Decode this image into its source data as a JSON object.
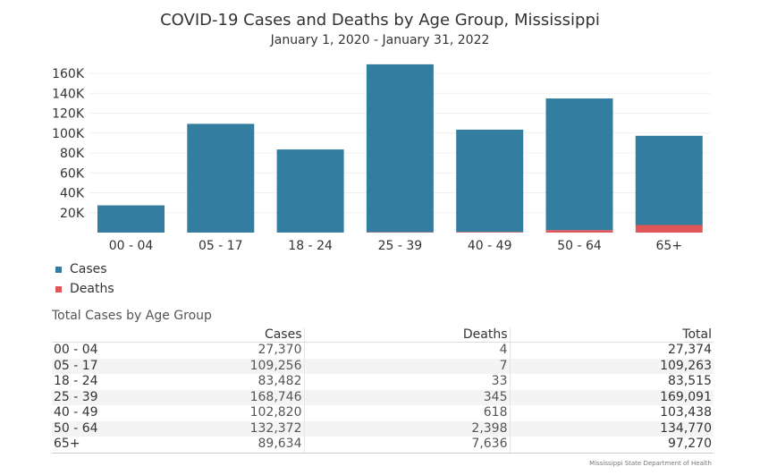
{
  "chart_data": {
    "type": "bar",
    "stacked": true,
    "title": "COVID-19 Cases and Deaths by Age Group, Mississippi",
    "subtitle": "January 1, 2020 -  January 31, 2022",
    "xlabel": "",
    "ylabel": "",
    "ylim": [
      0,
      170000
    ],
    "grid": true,
    "yticks": [
      20000,
      40000,
      60000,
      80000,
      100000,
      120000,
      140000,
      160000
    ],
    "ytick_labels": [
      "20K",
      "40K",
      "60K",
      "80K",
      "100K",
      "120K",
      "140K",
      "160K"
    ],
    "categories": [
      "00 - 04",
      "05 - 17",
      "18 - 24",
      "25 - 39",
      "40 - 49",
      "50 - 64",
      "65+"
    ],
    "series": [
      {
        "name": "Deaths",
        "color": "#e15759",
        "values": [
          4,
          7,
          33,
          345,
          618,
          2398,
          7636
        ]
      },
      {
        "name": "Cases",
        "color": "#337ea0",
        "values": [
          27370,
          109256,
          83482,
          168746,
          102820,
          132372,
          89634
        ]
      }
    ],
    "legend": {
      "position": "bottom-left",
      "entries": [
        {
          "label": "Cases",
          "color": "#337ea0"
        },
        {
          "label": "Deaths",
          "color": "#e15759"
        }
      ]
    }
  },
  "table": {
    "title": "Total Cases by Age Group",
    "headers": [
      "",
      "Cases",
      "Deaths",
      "Total"
    ],
    "rows": [
      {
        "group": "00 - 04",
        "cases": "27,370",
        "deaths": "4",
        "total": "27,374"
      },
      {
        "group": "05 - 17",
        "cases": "109,256",
        "deaths": "7",
        "total": "109,263"
      },
      {
        "group": "18 - 24",
        "cases": "83,482",
        "deaths": "33",
        "total": "83,515"
      },
      {
        "group": "25 - 39",
        "cases": "168,746",
        "deaths": "345",
        "total": "169,091"
      },
      {
        "group": "40 - 49",
        "cases": "102,820",
        "deaths": "618",
        "total": "103,438"
      },
      {
        "group": "50 - 64",
        "cases": "132,372",
        "deaths": "2,398",
        "total": "134,770"
      },
      {
        "group": "65+",
        "cases": "89,634",
        "deaths": "7,636",
        "total": "97,270"
      }
    ]
  },
  "source": "Mississippi State Department of Health"
}
